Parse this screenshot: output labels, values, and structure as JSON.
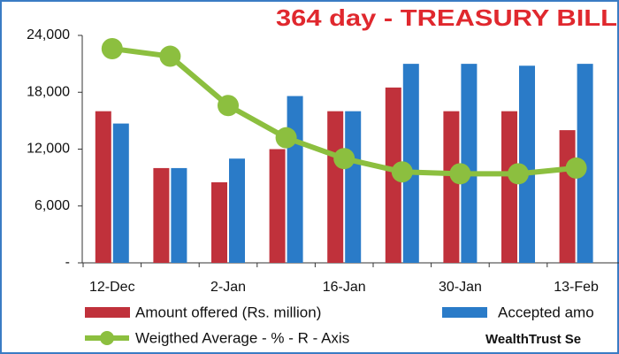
{
  "chart_data": {
    "type": "bar-line",
    "title": "364 day - TREASURY BILL",
    "categories": [
      "12-Dec",
      null,
      "2-Jan",
      null,
      "16-Jan",
      null,
      "30-Jan",
      null,
      "13-Feb"
    ],
    "series": [
      {
        "name": "Amount offered (Rs. million)",
        "color": "#c0313b",
        "type": "bar",
        "values": [
          16000,
          10000,
          8500,
          12000,
          16000,
          18500,
          16000,
          16000,
          14000
        ]
      },
      {
        "name": "Accepted amo",
        "color": "#2a7bc8",
        "type": "bar",
        "values": [
          14700,
          10000,
          11000,
          17600,
          16000,
          21000,
          21000,
          20800,
          21000
        ]
      },
      {
        "name": "Weigthed Average - % - R - Axis",
        "color": "#8cbf3f",
        "type": "line",
        "axis": "y2",
        "values": [
          6.93,
          6.89,
          6.63,
          6.46,
          6.35,
          6.28,
          6.27,
          6.27,
          6.3
        ]
      }
    ],
    "ylim": [
      0,
      24000
    ],
    "yticks": [
      {
        "value": 0,
        "label": "-"
      },
      {
        "value": 6000,
        "label": "6,000"
      },
      {
        "value": 12000,
        "label": "12,000"
      },
      {
        "value": 18000,
        "label": "18,000"
      },
      {
        "value": 24000,
        "label": "24,000"
      }
    ],
    "y2lim": [
      5.8,
      7.0
    ],
    "source": "WealthTrust Se"
  }
}
